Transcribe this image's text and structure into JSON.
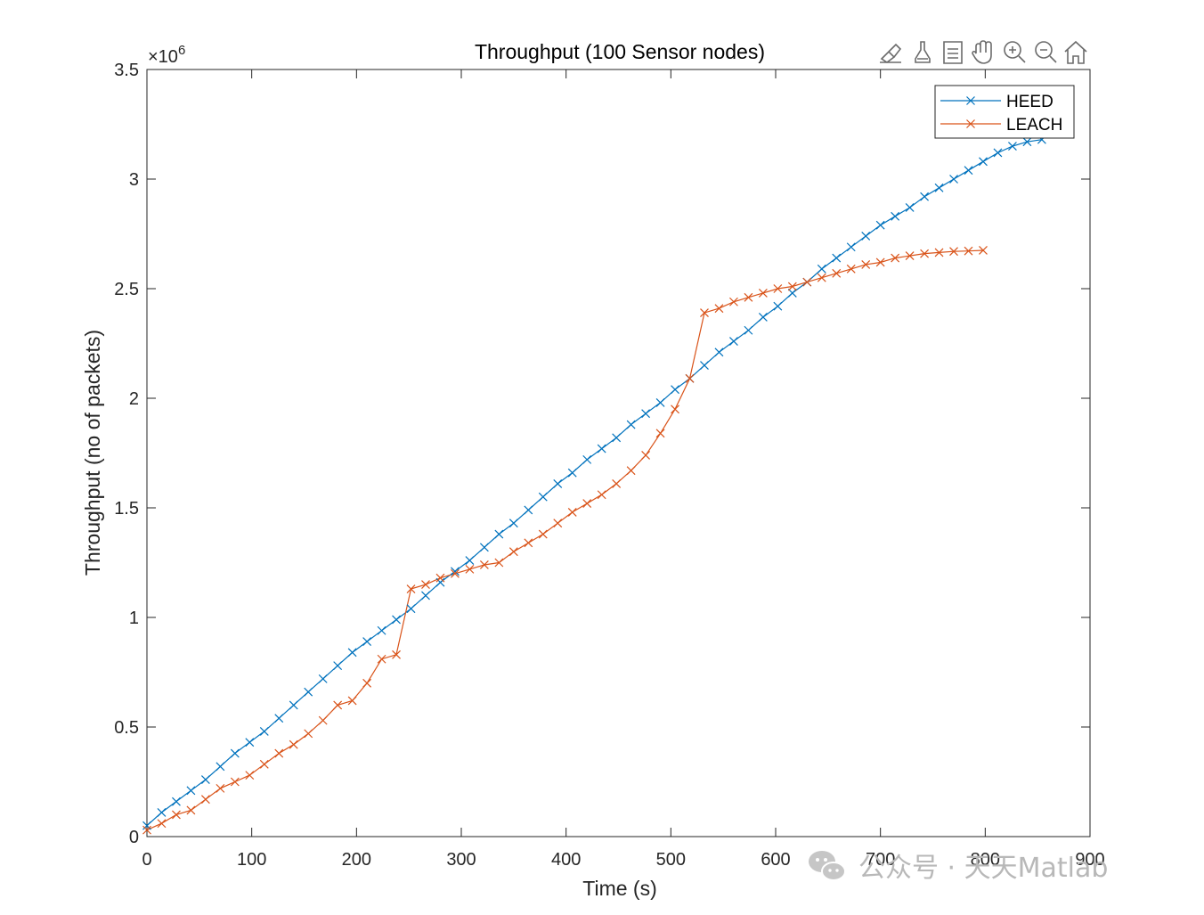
{
  "figure": {
    "toolbar": {
      "icons": [
        "brush-icon",
        "data-tips-icon",
        "legend-toggle-icon",
        "pan-hand-icon",
        "zoom-in-icon",
        "zoom-out-icon",
        "home-icon"
      ]
    },
    "watermark": {
      "text": "公众号 · 天天Matlab",
      "icon": "wechat-icon"
    }
  },
  "chart_data": {
    "type": "line",
    "title": "Throughput (100 Sensor nodes)",
    "xlabel": "Time (s)",
    "ylabel": "Throughput (no of packets)",
    "exponent_label": "×10",
    "exponent_power": "6",
    "xlim": [
      0,
      900
    ],
    "ylim": [
      0,
      3500000
    ],
    "xticks": [
      0,
      100,
      200,
      300,
      400,
      500,
      600,
      700,
      800,
      900
    ],
    "xtick_labels": [
      "0",
      "100",
      "200",
      "300",
      "400",
      "500",
      "600",
      "700",
      "800",
      "900"
    ],
    "yticks": [
      0,
      500000,
      1000000,
      1500000,
      2000000,
      2500000,
      3000000,
      3500000
    ],
    "ytick_labels": [
      "0",
      "0.5",
      "1",
      "1.5",
      "2",
      "2.5",
      "3",
      "3.5"
    ],
    "grid": false,
    "legend_position": "top-right",
    "series": [
      {
        "name": "HEED",
        "color": "#0072BD",
        "marker": "x",
        "x": [
          0,
          14,
          28,
          42,
          56,
          70,
          84,
          98,
          112,
          126,
          140,
          154,
          168,
          182,
          196,
          210,
          224,
          238,
          252,
          266,
          280,
          294,
          308,
          322,
          336,
          350,
          364,
          378,
          392,
          406,
          420,
          434,
          448,
          462,
          476,
          490,
          504,
          518,
          532,
          546,
          560,
          574,
          588,
          602,
          616,
          630,
          644,
          658,
          672,
          686,
          700,
          714,
          728,
          742,
          756,
          770,
          784,
          798,
          812,
          826,
          840,
          854
        ],
        "y": [
          50000,
          110000,
          160000,
          210000,
          260000,
          320000,
          380000,
          430000,
          480000,
          540000,
          600000,
          660000,
          720000,
          780000,
          840000,
          890000,
          940000,
          990000,
          1040000,
          1100000,
          1160000,
          1210000,
          1260000,
          1320000,
          1380000,
          1430000,
          1490000,
          1550000,
          1610000,
          1660000,
          1720000,
          1770000,
          1820000,
          1880000,
          1930000,
          1980000,
          2040000,
          2090000,
          2150000,
          2210000,
          2260000,
          2310000,
          2370000,
          2420000,
          2480000,
          2530000,
          2590000,
          2640000,
          2690000,
          2740000,
          2790000,
          2830000,
          2870000,
          2920000,
          2960000,
          3000000,
          3040000,
          3080000,
          3120000,
          3150000,
          3170000,
          3180000
        ]
      },
      {
        "name": "LEACH",
        "color": "#D95319",
        "marker": "x",
        "x": [
          0,
          14,
          28,
          42,
          56,
          70,
          84,
          98,
          112,
          126,
          140,
          154,
          168,
          182,
          196,
          210,
          224,
          238,
          252,
          266,
          280,
          294,
          308,
          322,
          336,
          350,
          364,
          378,
          392,
          406,
          420,
          434,
          448,
          462,
          476,
          490,
          504,
          518,
          532,
          546,
          560,
          574,
          588,
          602,
          616,
          630,
          644,
          658,
          672,
          686,
          700,
          714,
          728,
          742,
          756,
          770,
          784,
          798
        ],
        "y": [
          30000,
          60000,
          100000,
          120000,
          170000,
          220000,
          250000,
          280000,
          330000,
          380000,
          420000,
          470000,
          530000,
          600000,
          620000,
          700000,
          810000,
          830000,
          1130000,
          1150000,
          1180000,
          1200000,
          1220000,
          1240000,
          1250000,
          1300000,
          1340000,
          1380000,
          1430000,
          1480000,
          1520000,
          1560000,
          1610000,
          1670000,
          1740000,
          1840000,
          1950000,
          2090000,
          2390000,
          2410000,
          2440000,
          2460000,
          2480000,
          2500000,
          2510000,
          2530000,
          2550000,
          2570000,
          2590000,
          2610000,
          2620000,
          2640000,
          2650000,
          2660000,
          2665000,
          2670000,
          2672000,
          2675000
        ]
      }
    ]
  }
}
